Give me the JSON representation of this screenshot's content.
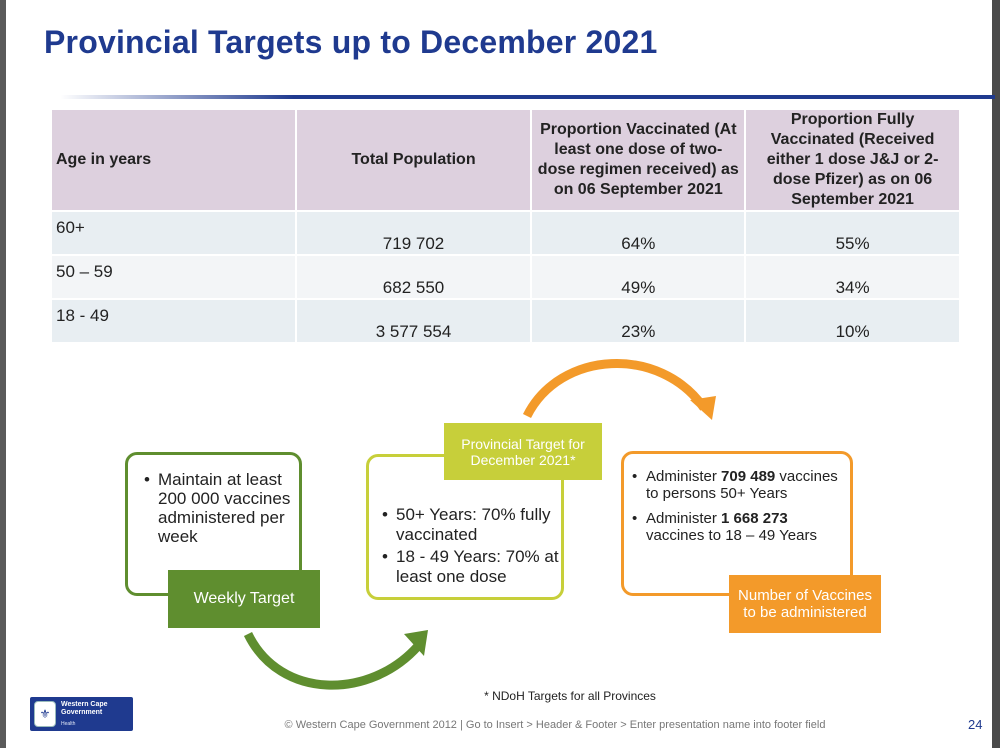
{
  "slide": {
    "title": "Provincial Targets up to December 2021"
  },
  "table": {
    "headers": [
      "Age in years",
      "Total Population",
      "Proportion Vaccinated (At least one dose of two-dose regimen received) as on 06 September 2021",
      "Proportion Fully Vaccinated (Received either 1 dose J&J or 2-dose Pfizer) as on 06 September 2021"
    ],
    "rows": [
      [
        "60+",
        "719 702",
        "64%",
        "55%"
      ],
      [
        "50 – 59",
        "682 550",
        "49%",
        "34%"
      ],
      [
        "18 - 49",
        "3 577 554",
        "23%",
        "10%"
      ]
    ]
  },
  "diagram": {
    "weekly": {
      "label": "Weekly Target",
      "bullet": "Maintain at least 200 000 vaccines administered per week"
    },
    "provincial": {
      "label": "Provincial Target for December 2021*",
      "bullets": [
        "50+ Years: 70% fully vaccinated",
        "18 - 49 Years: 70% at least one dose"
      ]
    },
    "administered": {
      "label": "Number of Vaccines to be administered",
      "bullets": [
        {
          "pre": "Administer ",
          "bold": "709 489",
          "post": " vaccines to persons 50+ Years"
        },
        {
          "pre": "Administer ",
          "bold": "1 668 273",
          "post": " vaccines to 18 – 49 Years"
        }
      ]
    },
    "colors": {
      "weekly": "#5f8e2f",
      "provincial": "#c7cf3a",
      "administered": "#f39a2a"
    }
  },
  "footnote": "* NDoH Targets for all Provinces",
  "footer": {
    "logo_line1": "Western Cape",
    "logo_line2": "Government",
    "logo_sub": "Health",
    "text": "© Western Cape Government 2012  |  Go to Insert > Header & Footer > Enter presentation name into footer field",
    "page_number": "24"
  }
}
